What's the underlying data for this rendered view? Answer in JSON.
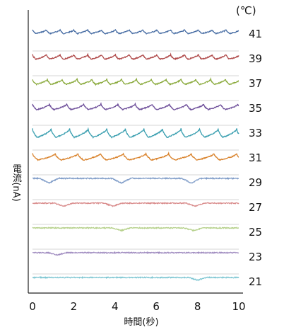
{
  "chart_data": {
    "type": "line",
    "title": "",
    "unit_label": "(℃)",
    "ylabel": "電流(nA)",
    "xlabel": "時間(秒)",
    "xlim": [
      0,
      10
    ],
    "x_ticks": [
      "0",
      "2",
      "4",
      "6",
      "8",
      "10"
    ],
    "grid": false,
    "series": [
      {
        "name": "41",
        "color": "#4a6fa5",
        "shape": "periodic",
        "period_s": 0.67,
        "depth": 0.45
      },
      {
        "name": "39",
        "color": "#b04a4a",
        "shape": "periodic",
        "period_s": 0.67,
        "depth": 0.55
      },
      {
        "name": "37",
        "color": "#8aaa3c",
        "shape": "periodic",
        "period_s": 0.72,
        "depth": 0.6
      },
      {
        "name": "35",
        "color": "#6e4f9a",
        "shape": "periodic",
        "period_s": 0.83,
        "depth": 0.65
      },
      {
        "name": "33",
        "color": "#3a9fb0",
        "shape": "periodic",
        "period_s": 0.9,
        "depth": 1.0
      },
      {
        "name": "31",
        "color": "#d9822b",
        "shape": "periodic",
        "period_s": 1.1,
        "depth": 0.75
      },
      {
        "name": "29",
        "color": "#7f9cc8",
        "shape": "events",
        "events_s": [
          0.8,
          4.3,
          7.7
        ],
        "depth": 0.55
      },
      {
        "name": "27",
        "color": "#d98c8c",
        "shape": "events",
        "events_s": [
          1.5,
          3.9,
          7.9
        ],
        "depth": 0.35
      },
      {
        "name": "25",
        "color": "#b5d08a",
        "shape": "events",
        "events_s": [
          4.3,
          7.8
        ],
        "depth": 0.3
      },
      {
        "name": "23",
        "color": "#a08cc0",
        "shape": "events",
        "events_s": [
          1.2
        ],
        "depth": 0.25
      },
      {
        "name": "21",
        "color": "#7ec6d2",
        "shape": "events",
        "events_s": [
          8.0
        ],
        "depth": 0.3
      }
    ]
  }
}
